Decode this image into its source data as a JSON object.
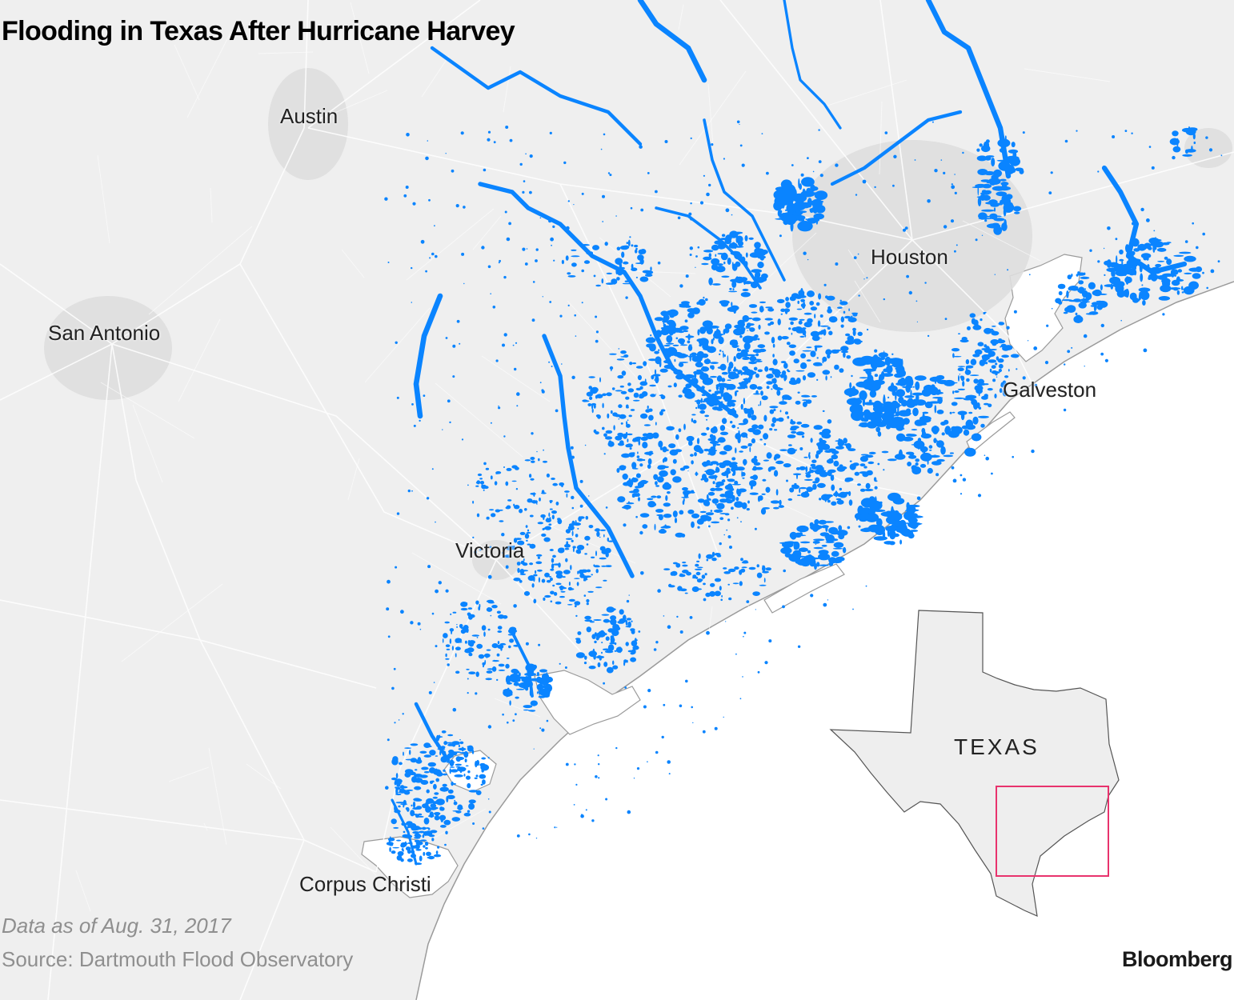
{
  "title": "Flooding in Texas After Hurricane Harvey",
  "cities": {
    "austin": "Austin",
    "san_antonio": "San Antonio",
    "houston": "Houston",
    "galveston": "Galveston",
    "victoria": "Victoria",
    "corpus_christi": "Corpus Christi"
  },
  "inset": {
    "state_label": "TEXAS"
  },
  "footer": {
    "data_note": "Data as of Aug. 31, 2017",
    "source": "Source: Dartmouth Flood Observatory",
    "brand": "Bloomberg"
  },
  "colors": {
    "land": "#efefef",
    "water": "#ffffff",
    "flood": "#0a84ff",
    "urban": "#dedede",
    "roads": "#ffffff",
    "inset_box": "#e8336d",
    "inset_land": "#eeeeee"
  }
}
